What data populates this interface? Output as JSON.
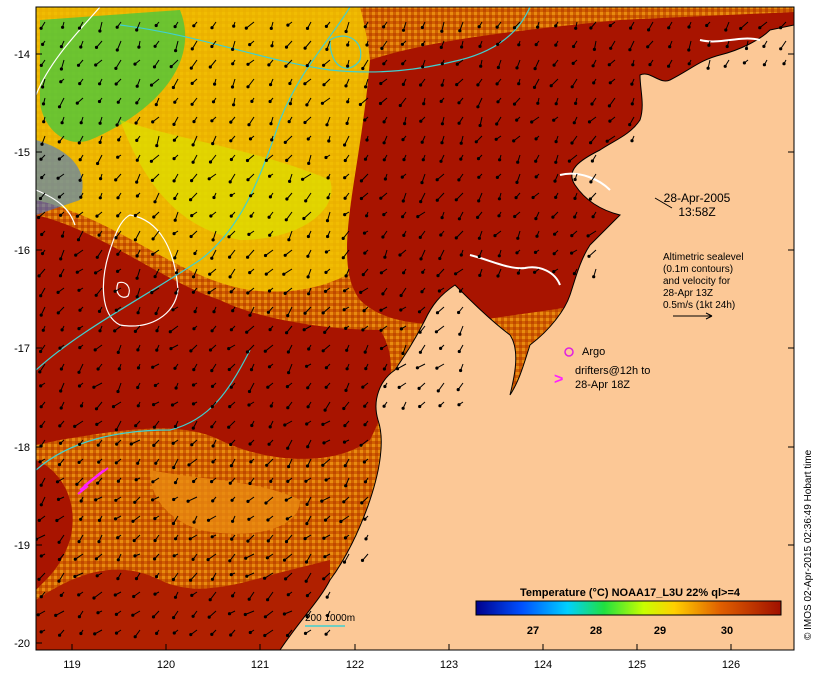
{
  "map": {
    "lon_ticks": [
      "119",
      "120",
      "121",
      "122",
      "123",
      "124",
      "125",
      "126"
    ],
    "lat_ticks": [
      "-14",
      "-15",
      "-16",
      "-17",
      "-18",
      "-19",
      "-20"
    ],
    "timestamp": [
      "28-Apr-2005",
      "13:58Z"
    ],
    "altimetry_note": [
      "Altimetric sealevel",
      "(0.1m contours)",
      "and velocity for",
      "28-Apr 13Z",
      "0.5m/s (1kt 24h)"
    ],
    "argo_label": "Argo",
    "drifter_note": [
      "drifters@12h to",
      "28-Apr 18Z"
    ],
    "depth_legend": "200  1000m",
    "colorbar": {
      "title": "Temperature (°C) NOAA17_L3U 22% ql>=4",
      "ticks": [
        "27",
        "28",
        "29",
        "30"
      ]
    },
    "credit": "© IMOS 02-Apr-2015 02:36:49 Hobart time"
  },
  "colors": {
    "land": "#fcc896",
    "sst_warm": "#a81400",
    "sst_mid": "#d86a00",
    "sst_cool": "#f6c800",
    "contour": "#ffffff",
    "bathymetry": "#40d0d0",
    "argo": "#e020e0",
    "drifter": "#ff20ff"
  }
}
